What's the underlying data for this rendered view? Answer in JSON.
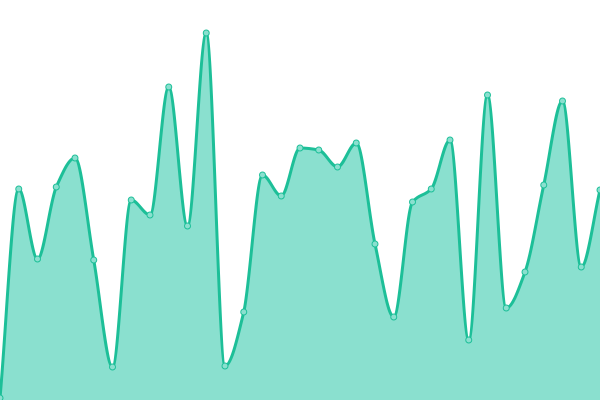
{
  "chart_data": {
    "type": "area",
    "title": "",
    "xlabel": "",
    "ylabel": "",
    "x": [
      0,
      1,
      2,
      3,
      4,
      5,
      6,
      7,
      8,
      9,
      10,
      11,
      12,
      13,
      14,
      15,
      16,
      17,
      18,
      19,
      20,
      21,
      22,
      23,
      24,
      25,
      26,
      27,
      28,
      29,
      30,
      31,
      32
    ],
    "values": [
      2,
      211,
      141,
      213,
      242,
      140,
      33,
      200,
      185,
      313,
      174,
      367,
      34,
      88,
      225,
      204,
      252,
      250,
      233,
      257,
      156,
      83,
      198,
      211,
      260,
      60,
      305,
      92,
      128,
      215,
      299,
      133,
      210
    ],
    "ylim": [
      0,
      400
    ],
    "grid": false,
    "axes_visible": false,
    "curve": "smooth",
    "markers": true,
    "colors": {
      "line": "#1dbf98",
      "fill": "#8ae0cf",
      "marker_fill": "#8ae0cf",
      "marker_stroke": "#1dbf98"
    }
  }
}
